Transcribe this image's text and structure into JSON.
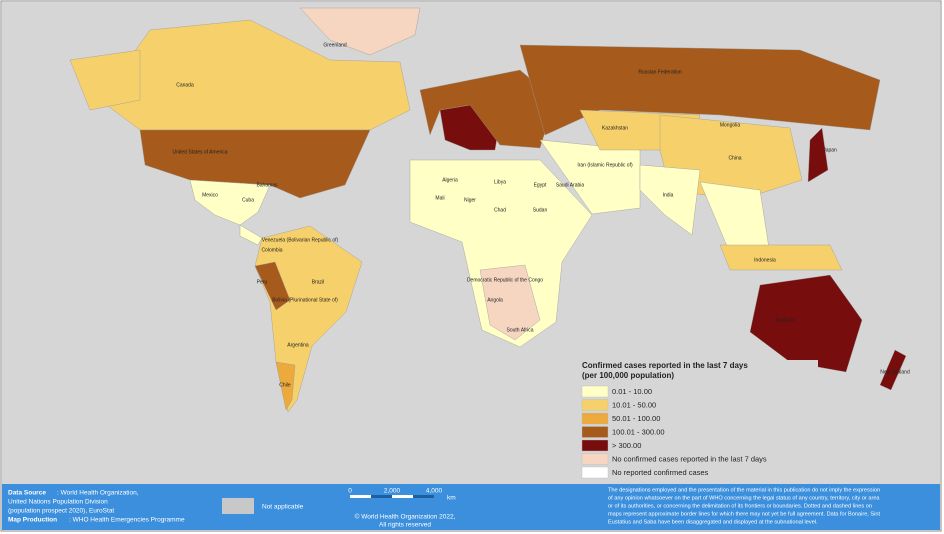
{
  "legend": {
    "title_line1": "Confirmed cases reported in the last 7 days",
    "title_line2": "(per 100,000 population)",
    "items": [
      {
        "label": "0.01 - 10.00",
        "color": "#ffffc6"
      },
      {
        "label": "10.01 - 50.00",
        "color": "#f6d06a"
      },
      {
        "label": "50.01 - 100.00",
        "color": "#eca93c"
      },
      {
        "label": "100.01 - 300.00",
        "color": "#a65a1c"
      },
      {
        "label": "> 300.00",
        "color": "#780d0d"
      },
      {
        "label": "No confirmed cases reported in the last 7 days",
        "color": "#f6d5c1"
      },
      {
        "label": "No reported confirmed cases",
        "color": "#ffffff"
      }
    ]
  },
  "map_labels": [
    "Greenland",
    "Canada",
    "United States of America",
    "Mexico",
    "Brazil",
    "Peru",
    "Bolivia (Plurinational State of)",
    "Argentina",
    "Chile",
    "Russian Federation",
    "Kazakhstan",
    "Mongolia",
    "China",
    "India",
    "Algeria",
    "Libya",
    "Egypt",
    "Chad",
    "Sudan",
    "Niger",
    "Mali",
    "Democratic Republic of the Congo",
    "Angola",
    "Australia",
    "New Zealand",
    "Japan",
    "Indonesia",
    "Saudi Arabia",
    "Iran (Islamic Republic of)",
    "South Africa",
    "Bahamas",
    "Cuba",
    "Colombia",
    "Venezuela (Bolivarian Republic of)"
  ],
  "footer": {
    "source_label": "Data Source",
    "source_text": ": World Health Organization,",
    "source_line2": "United Nations Population Division",
    "source_line3": "(population prospect 2020), EuroStat",
    "production_label": "Map Production",
    "production_text": ": WHO Health Emergencies Programme",
    "not_applicable": "Not applicable",
    "scale_ticks": [
      "0",
      "2,000",
      "4,000"
    ],
    "scale_unit": "km",
    "copyright_line1": "© World Health Organization 2022,",
    "copyright_line2": "All rights reserved",
    "disclaimer": [
      "The designations employed and the presentation of the material in this publication do not imply the expression",
      "of any opinion whatsoever on the part of WHO concerning the legal status of any country, territory, city or area",
      "or of its authorities, or concerning the delimitation of its frontiers or boundaries. Dotted and dashed lines on",
      "maps represent approximate border lines for which there may not yet be full agreement. Data for Bonaire, Sint",
      "Eustatius and Saba have been disaggregated and displayed at the subnational level."
    ]
  }
}
